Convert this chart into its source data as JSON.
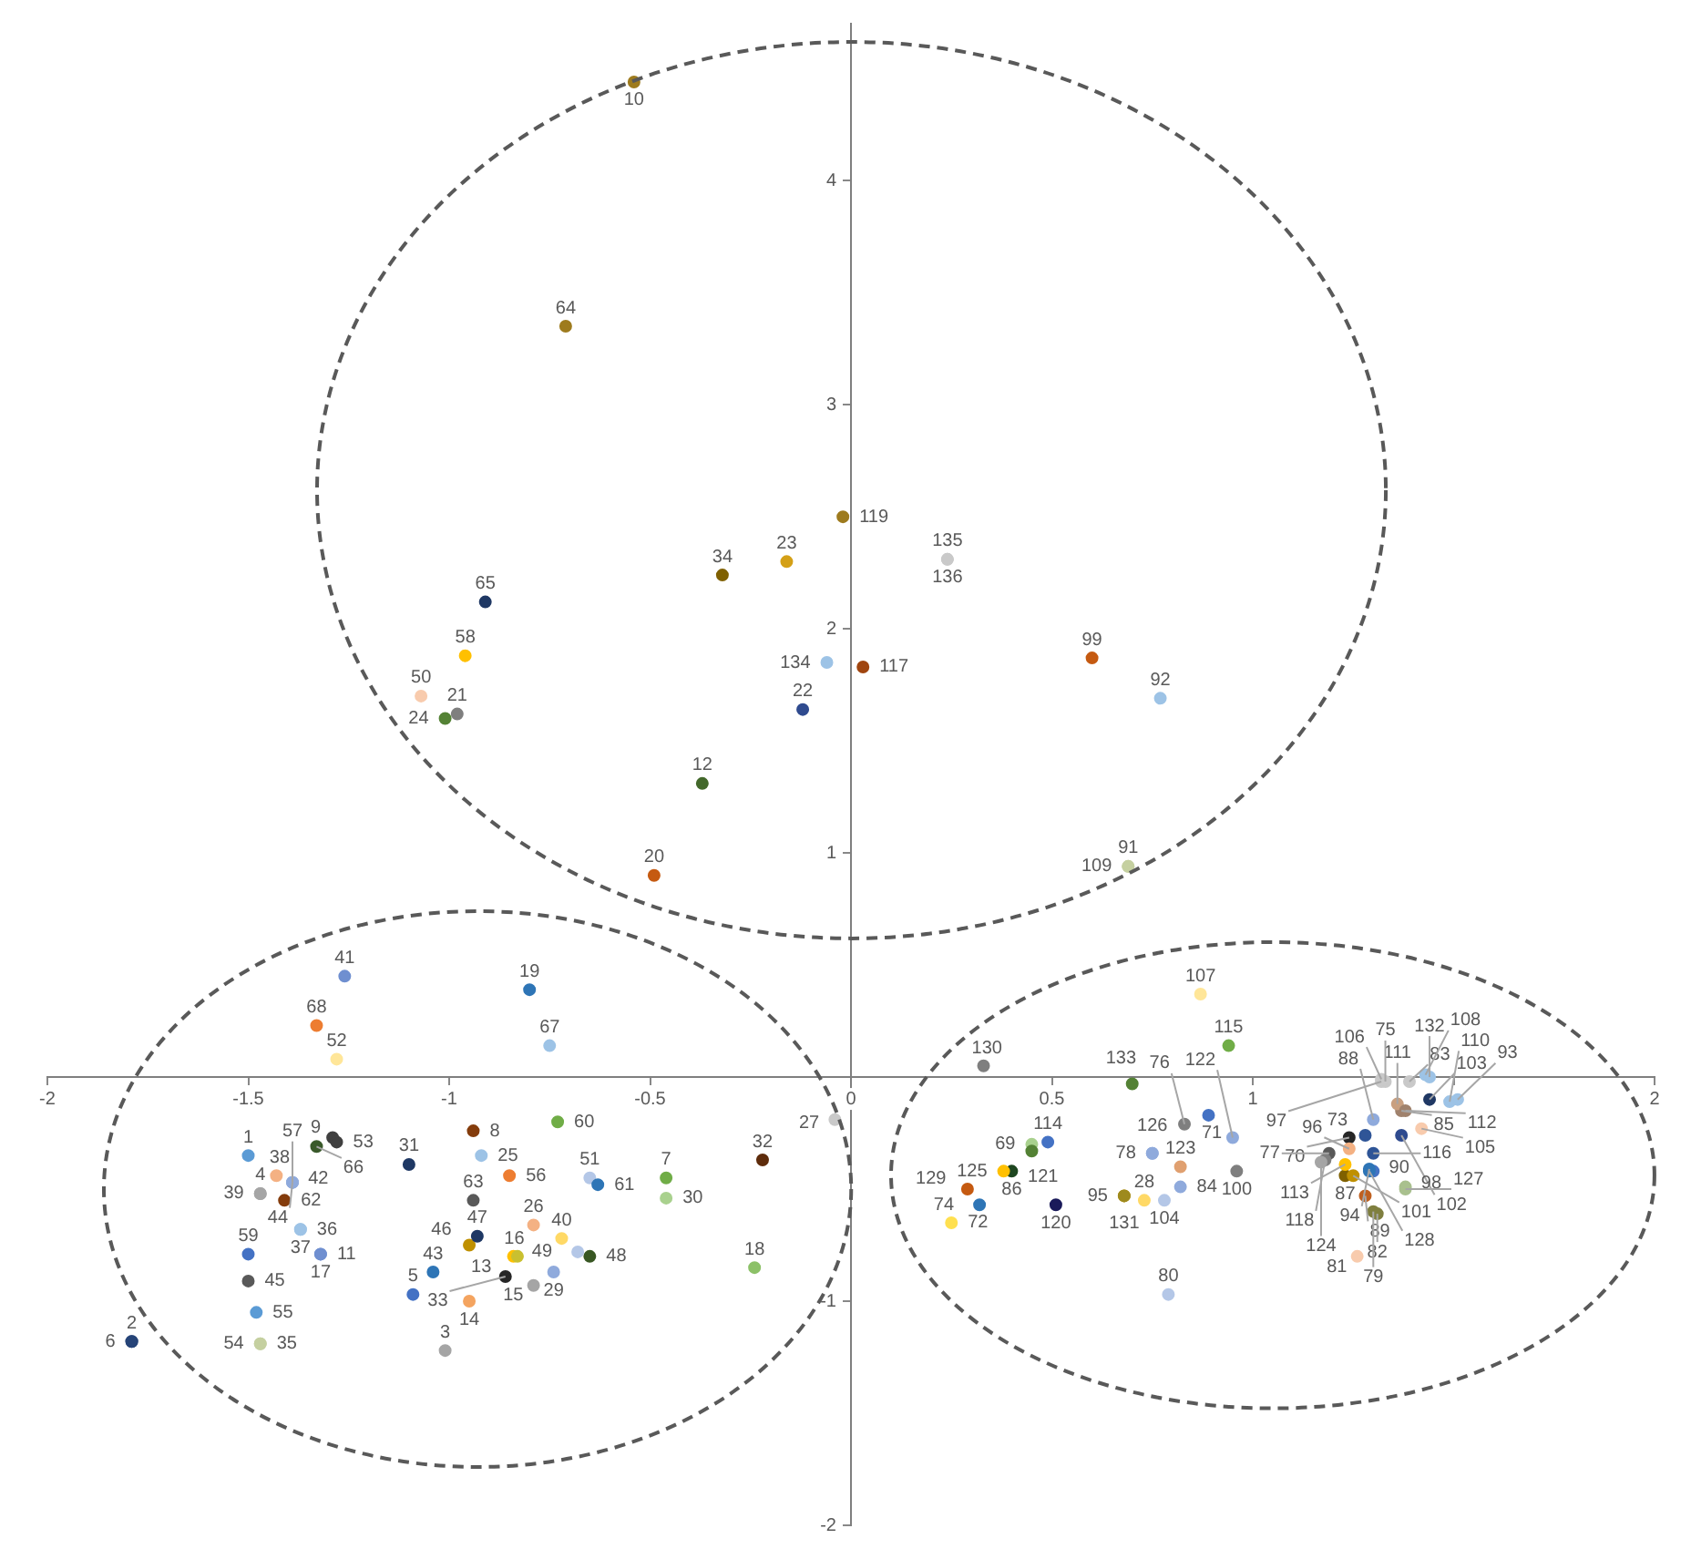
{
  "chart_data": {
    "type": "scatter",
    "x": [
      -1.5,
      -1.79,
      -1.01,
      -1.47,
      -1.09,
      -1.79,
      -0.46,
      -0.94,
      -1.29,
      -0.54,
      -1.32,
      -0.37,
      -0.84,
      -0.95,
      -0.79,
      -0.83,
      -1.32,
      -0.24,
      -0.8,
      -0.49,
      -0.98,
      -0.12,
      -0.16,
      -1.01,
      -0.92,
      -0.79,
      -0.04,
      0.73,
      -0.74,
      -0.46,
      -1.1,
      -0.22,
      -0.86,
      -0.32,
      -1.47,
      -1.37,
      -1.37,
      -1.43,
      -1.47,
      -0.72,
      -1.26,
      -1.39,
      -1.04,
      -1.39,
      -1.5,
      -0.95,
      -0.93,
      -0.65,
      -0.68,
      -1.07,
      -0.65,
      -1.28,
      -1.28,
      -1.47,
      -1.48,
      -0.85,
      -1.39,
      -0.96,
      -1.5,
      -0.73,
      -0.63,
      -1.41,
      -0.94,
      -0.71,
      -0.91,
      -1.33,
      -0.75,
      -1.33,
      0.45,
      1.24,
      0.89,
      0.25,
      1.28,
      0.32,
      1.33,
      0.83,
      1.19,
      0.75,
      1.3,
      0.79,
      1.26,
      1.31,
      1.39,
      0.82,
      1.37,
      0.4,
      1.23,
      1.3,
      1.28,
      1.3,
      0.69,
      0.77,
      1.51,
      1.29,
      0.68,
      1.24,
      1.32,
      1.38,
      0.6,
      0.96,
      1.25,
      1.37,
      1.44,
      0.78,
      1.42,
      1.32,
      0.87,
      1.43,
      0.69,
      1.49,
      1.36,
      1.38,
      1.23,
      0.49,
      0.94,
      1.3,
      0.03,
      1.18,
      -0.02,
      0.51,
      0.45,
      0.95,
      0.82,
      1.17,
      0.38,
      0.75,
      1.38,
      1.29,
      0.29,
      0.33,
      0.68,
      1.44,
      0.7,
      -0.06,
      0.24,
      0.24
    ],
    "values": [
      -0.35,
      -1.18,
      -1.22,
      -0.52,
      -0.97,
      -1.18,
      -0.45,
      -0.24,
      -0.27,
      4.44,
      -0.79,
      1.31,
      -0.8,
      -1.0,
      -0.93,
      -0.8,
      -0.79,
      -0.85,
      0.39,
      0.9,
      1.62,
      1.64,
      2.3,
      1.6,
      -0.35,
      -0.66,
      -0.19,
      -0.55,
      -0.87,
      -0.54,
      -0.39,
      -0.37,
      -0.89,
      2.24,
      -1.19,
      -0.68,
      -0.68,
      -0.44,
      -0.52,
      -0.72,
      0.45,
      -0.47,
      -0.87,
      -0.47,
      -0.91,
      -0.75,
      -0.71,
      -0.8,
      -0.78,
      1.7,
      -0.45,
      0.08,
      -0.29,
      -1.19,
      -1.05,
      -0.44,
      -0.47,
      1.88,
      -0.79,
      -0.2,
      -0.48,
      -0.55,
      -0.55,
      3.35,
      2.12,
      -0.31,
      0.14,
      0.23,
      -0.3,
      -0.27,
      -0.17,
      -0.65,
      -0.26,
      -0.57,
      -0.02,
      -0.21,
      -0.34,
      -0.34,
      -0.6,
      -0.97,
      -0.8,
      -0.61,
      -0.02,
      -0.49,
      -0.15,
      -0.42,
      -0.44,
      -0.19,
      -0.53,
      -0.42,
      0.94,
      1.69,
      -0.1,
      -0.41,
      -0.53,
      -0.32,
      -0.02,
      -0.49,
      1.87,
      -0.42,
      -0.44,
      -0.26,
      -0.1,
      -0.55,
      -0.23,
      -0.01,
      0.37,
      0.01,
      0.94,
      -0.11,
      -0.12,
      -0.15,
      -0.39,
      -0.29,
      0.14,
      -0.34,
      1.83,
      -0.37,
      2.5,
      -0.57,
      -0.33,
      -0.27,
      -0.4,
      -0.38,
      -0.42,
      -0.34,
      -0.5,
      -0.42,
      -0.5,
      0.05,
      -0.53,
      0.0,
      -0.03,
      1.85,
      2.31,
      2.31
    ],
    "colors": [
      "#5b9bd5",
      "#264478",
      "#a5a5a5",
      "#a5a5a5",
      "#4472c4",
      "#264478",
      "#70ad47",
      "#843c0c",
      "#404040",
      "#9e7b1e",
      "#6f8fd0",
      "#43682b",
      "#ffc000",
      "#f4a460",
      "#a5a5a5",
      "#c9c030",
      "#6f8fd0",
      "#8cc168",
      "#2e75b6",
      "#c55a11",
      "#7f7f7f",
      "#2f4b8f",
      "#d4a017",
      "#548235",
      "#9dc3e6",
      "#f4b183",
      "#c9c9c9",
      "#ffd966",
      "#8faadc",
      "#a9d18e",
      "#1f3864",
      "#5e2c0c",
      "#262626",
      "#7f6000",
      "#c5d0a0",
      "#9dc3e6",
      "#9dc3e6",
      "#f4b183",
      "#a5a5a5",
      "#ffd966",
      "#6f8fd0",
      "#8faadc",
      "#2e75b6",
      "#8faadc",
      "#595959",
      "#bf9000",
      "#1f3864",
      "#385723",
      "#b4c7e7",
      "#f8cbad",
      "#b4c7e7",
      "#ffe699",
      "#404040",
      "#c5d0a0",
      "#5b9bd5",
      "#ed7d31",
      "#8faadc",
      "#ffc000",
      "#4472c4",
      "#70ad47",
      "#2e75b6",
      "#843c0c",
      "#595959",
      "#9e7b1e",
      "#1f3864",
      "#3a5a2b",
      "#9dc3e6",
      "#ed7d31",
      "#a9d18e",
      "#262626",
      "#4472c4",
      "#ffe050",
      "#2f5597",
      "#2e75b6",
      "#c9c9c9",
      "#7f7f7f",
      "#595959",
      "#8faadc",
      "#7f7f3f",
      "#b4c7e7",
      "#f8cbad",
      "#7f7f3f",
      "#c9c9c9",
      "#8faadc",
      "#a0826d",
      "#1e4620",
      "#7f6000",
      "#8faadc",
      "#bf6020",
      "#4472c4",
      "#c5d0a0",
      "#9dc3e6",
      "#9dc3e6",
      "#2e75b6",
      "#bf9000",
      "#f4b183",
      "#c9c9c9",
      "#a9c08e",
      "#c55a11",
      "#7f7f7f",
      "#bf9000",
      "#2f4b8f",
      "#203864",
      "#b4c7e7",
      "#f8cbad",
      "#c9c9c9",
      "#ffe699",
      "#9dc3e6",
      "#c5d0a0",
      "#9dc3e6",
      "#c9a080",
      "#a0826d",
      "#ffc000",
      "#4472c4",
      "#70ad47",
      "#2f5597",
      "#a0450f",
      "#7f7f7f",
      "#9e7b1e",
      "#1a1a5a",
      "#548235",
      "#8faadc",
      "#e0a070",
      "#a5a5a5",
      "#ffc000",
      "#8faadc",
      "#a9c08e",
      "#2e75b6",
      "#c55a11",
      "#7f7f7f",
      "#9e8a1e",
      "#9dc3e6",
      "#548235",
      "#9dc3e6",
      "#c9c9c9",
      "#c9c9c9"
    ],
    "xlim": [
      -2,
      2
    ],
    "xticks": [
      -2,
      -1.5,
      -1,
      -0.5,
      0,
      0.5,
      1,
      {
        "value": 1.5,
        "label": null
      },
      2
    ],
    "ylim": [
      -2,
      4.7
    ],
    "yticks": [
      -2,
      -1,
      {
        "value": 0,
        "label": null
      },
      1,
      2,
      3,
      4
    ],
    "grid": false,
    "legend": false,
    "marker": "circle",
    "annotations": [
      {
        "text": "1",
        "x": -1.5,
        "y": -0.35
      },
      {
        "text": "2",
        "x": -1.79,
        "y": -1.18
      },
      {
        "text": "3",
        "x": -1.01,
        "y": -1.22
      },
      {
        "text": "4",
        "x": -1.47,
        "y": -0.52
      },
      {
        "text": "5",
        "x": -1.09,
        "y": -0.97
      },
      {
        "text": "6",
        "x": -1.79,
        "y": -1.18
      },
      {
        "text": "7",
        "x": -0.46,
        "y": -0.45
      },
      {
        "text": "8",
        "x": -0.94,
        "y": -0.24
      },
      {
        "text": "9",
        "x": -1.29,
        "y": -0.27
      },
      {
        "text": "10",
        "x": -0.54,
        "y": 4.44
      },
      {
        "text": "11",
        "x": -1.32,
        "y": -0.79
      },
      {
        "text": "12",
        "x": -0.37,
        "y": 1.31
      },
      {
        "text": "13",
        "x": -0.84,
        "y": -0.8
      },
      {
        "text": "14",
        "x": -0.95,
        "y": -1.0
      },
      {
        "text": "15",
        "x": -0.79,
        "y": -0.93
      },
      {
        "text": "16",
        "x": -0.83,
        "y": -0.8
      },
      {
        "text": "17",
        "x": -1.32,
        "y": -0.79
      },
      {
        "text": "18",
        "x": -0.24,
        "y": -0.85
      },
      {
        "text": "19",
        "x": -0.8,
        "y": 0.39
      },
      {
        "text": "20",
        "x": -0.49,
        "y": 0.9
      },
      {
        "text": "21",
        "x": -0.98,
        "y": 1.62
      },
      {
        "text": "22",
        "x": -0.12,
        "y": 1.64
      },
      {
        "text": "23",
        "x": -0.16,
        "y": 2.3
      },
      {
        "text": "24",
        "x": -1.01,
        "y": 1.6
      },
      {
        "text": "25",
        "x": -0.92,
        "y": -0.35
      },
      {
        "text": "26",
        "x": -0.79,
        "y": -0.66
      },
      {
        "text": "27",
        "x": -0.04,
        "y": -0.19
      },
      {
        "text": "28",
        "x": 0.73,
        "y": -0.55
      },
      {
        "text": "29",
        "x": -0.74,
        "y": -0.87
      },
      {
        "text": "30",
        "x": -0.46,
        "y": -0.54
      },
      {
        "text": "31",
        "x": -1.1,
        "y": -0.39
      },
      {
        "text": "32",
        "x": -0.22,
        "y": -0.37
      },
      {
        "text": "33",
        "x": -0.86,
        "y": -0.89
      },
      {
        "text": "34",
        "x": -0.32,
        "y": 2.24
      },
      {
        "text": "35",
        "x": -1.47,
        "y": -1.19
      },
      {
        "text": "36",
        "x": -1.37,
        "y": -0.68
      },
      {
        "text": "37",
        "x": -1.37,
        "y": -0.68
      },
      {
        "text": "38",
        "x": -1.43,
        "y": -0.44
      },
      {
        "text": "39",
        "x": -1.47,
        "y": -0.52
      },
      {
        "text": "40",
        "x": -0.72,
        "y": -0.72
      },
      {
        "text": "41",
        "x": -1.26,
        "y": 0.45
      },
      {
        "text": "42",
        "x": -1.39,
        "y": -0.47
      },
      {
        "text": "43",
        "x": -1.04,
        "y": -0.87
      },
      {
        "text": "44",
        "x": -1.39,
        "y": -0.47
      },
      {
        "text": "45",
        "x": -1.5,
        "y": -0.91
      },
      {
        "text": "46",
        "x": -0.95,
        "y": -0.75
      },
      {
        "text": "47",
        "x": -0.93,
        "y": -0.71
      },
      {
        "text": "48",
        "x": -0.65,
        "y": -0.8
      },
      {
        "text": "49",
        "x": -0.68,
        "y": -0.78
      },
      {
        "text": "50",
        "x": -1.07,
        "y": 1.7
      },
      {
        "text": "51",
        "x": -0.65,
        "y": -0.45
      },
      {
        "text": "52",
        "x": -1.28,
        "y": 0.08
      },
      {
        "text": "53",
        "x": -1.28,
        "y": -0.29
      },
      {
        "text": "54",
        "x": -1.47,
        "y": -1.19
      },
      {
        "text": "55",
        "x": -1.48,
        "y": -1.05
      },
      {
        "text": "56",
        "x": -0.85,
        "y": -0.44
      },
      {
        "text": "57",
        "x": -1.39,
        "y": -0.47
      },
      {
        "text": "58",
        "x": -0.96,
        "y": 1.88
      },
      {
        "text": "59",
        "x": -1.5,
        "y": -0.79
      },
      {
        "text": "60",
        "x": -0.73,
        "y": -0.2
      },
      {
        "text": "61",
        "x": -0.63,
        "y": -0.48
      },
      {
        "text": "62",
        "x": -1.41,
        "y": -0.55
      },
      {
        "text": "63",
        "x": -0.94,
        "y": -0.55
      },
      {
        "text": "64",
        "x": -0.71,
        "y": 3.35
      },
      {
        "text": "65",
        "x": -0.91,
        "y": 2.12
      },
      {
        "text": "66",
        "x": -1.33,
        "y": -0.31
      },
      {
        "text": "67",
        "x": -0.75,
        "y": 0.14
      },
      {
        "text": "68",
        "x": -1.33,
        "y": 0.23
      },
      {
        "text": "69",
        "x": 0.45,
        "y": -0.3
      },
      {
        "text": "70",
        "x": 1.24,
        "y": -0.27
      },
      {
        "text": "71",
        "x": 0.89,
        "y": -0.17
      },
      {
        "text": "72",
        "x": 0.25,
        "y": -0.65
      },
      {
        "text": "73",
        "x": 1.28,
        "y": -0.26
      },
      {
        "text": "74",
        "x": 0.32,
        "y": -0.57
      },
      {
        "text": "75",
        "x": 1.33,
        "y": -0.02
      },
      {
        "text": "76",
        "x": 0.83,
        "y": -0.21
      },
      {
        "text": "77",
        "x": 1.19,
        "y": -0.34
      },
      {
        "text": "78",
        "x": 0.75,
        "y": -0.34
      },
      {
        "text": "79",
        "x": 1.3,
        "y": -0.6
      },
      {
        "text": "80",
        "x": 0.79,
        "y": -0.97
      },
      {
        "text": "81",
        "x": 1.26,
        "y": -0.8
      },
      {
        "text": "82",
        "x": 1.31,
        "y": -0.61
      },
      {
        "text": "83",
        "x": 1.39,
        "y": -0.02
      },
      {
        "text": "84",
        "x": 0.82,
        "y": -0.49
      },
      {
        "text": "85",
        "x": 1.37,
        "y": -0.15
      },
      {
        "text": "86",
        "x": 0.4,
        "y": -0.42
      },
      {
        "text": "87",
        "x": 1.23,
        "y": -0.44
      },
      {
        "text": "88",
        "x": 1.3,
        "y": -0.19
      },
      {
        "text": "89",
        "x": 1.28,
        "y": -0.53
      },
      {
        "text": "90",
        "x": 1.3,
        "y": -0.42
      },
      {
        "text": "91",
        "x": 0.69,
        "y": 0.94
      },
      {
        "text": "92",
        "x": 0.77,
        "y": 1.69
      },
      {
        "text": "93",
        "x": 1.51,
        "y": -0.1
      },
      {
        "text": "94",
        "x": 1.29,
        "y": -0.41
      },
      {
        "text": "95",
        "x": 0.68,
        "y": -0.53
      },
      {
        "text": "96",
        "x": 1.24,
        "y": -0.32
      },
      {
        "text": "97",
        "x": 1.32,
        "y": -0.02
      },
      {
        "text": "98",
        "x": 1.38,
        "y": -0.49
      },
      {
        "text": "99",
        "x": 0.6,
        "y": 1.87
      },
      {
        "text": "100",
        "x": 0.96,
        "y": -0.42
      },
      {
        "text": "101",
        "x": 1.25,
        "y": -0.44
      },
      {
        "text": "102",
        "x": 1.37,
        "y": -0.26
      },
      {
        "text": "103",
        "x": 1.44,
        "y": -0.1
      },
      {
        "text": "104",
        "x": 0.78,
        "y": -0.55
      },
      {
        "text": "105",
        "x": 1.42,
        "y": -0.23
      },
      {
        "text": "106",
        "x": 1.32,
        "y": -0.01
      },
      {
        "text": "107",
        "x": 0.87,
        "y": 0.37
      },
      {
        "text": "108",
        "x": 1.43,
        "y": 0.01
      },
      {
        "text": "109",
        "x": 0.69,
        "y": 0.94
      },
      {
        "text": "110",
        "x": 1.49,
        "y": -0.11
      },
      {
        "text": "111",
        "x": 1.36,
        "y": -0.12
      },
      {
        "text": "112",
        "x": 1.38,
        "y": -0.15
      },
      {
        "text": "113",
        "x": 1.23,
        "y": -0.39
      },
      {
        "text": "114",
        "x": 0.49,
        "y": -0.29
      },
      {
        "text": "115",
        "x": 0.94,
        "y": 0.14
      },
      {
        "text": "116",
        "x": 1.3,
        "y": -0.34
      },
      {
        "text": "117",
        "x": 0.03,
        "y": 1.83
      },
      {
        "text": "118",
        "x": 1.18,
        "y": -0.37
      },
      {
        "text": "119",
        "x": -0.02,
        "y": 2.5
      },
      {
        "text": "120",
        "x": 0.51,
        "y": -0.57
      },
      {
        "text": "121",
        "x": 0.45,
        "y": -0.33
      },
      {
        "text": "122",
        "x": 0.95,
        "y": -0.27
      },
      {
        "text": "123",
        "x": 0.82,
        "y": -0.4
      },
      {
        "text": "124",
        "x": 1.17,
        "y": -0.38
      },
      {
        "text": "125",
        "x": 0.38,
        "y": -0.42
      },
      {
        "text": "126",
        "x": 0.75,
        "y": -0.34
      },
      {
        "text": "127",
        "x": 1.38,
        "y": -0.5
      },
      {
        "text": "128",
        "x": 1.29,
        "y": -0.42
      },
      {
        "text": "129",
        "x": 0.29,
        "y": -0.5
      },
      {
        "text": "130",
        "x": 0.33,
        "y": 0.05
      },
      {
        "text": "131",
        "x": 0.68,
        "y": -0.53
      },
      {
        "text": "132",
        "x": 1.44,
        "y": 0.0
      },
      {
        "text": "133",
        "x": 0.7,
        "y": -0.03
      },
      {
        "text": "134",
        "x": -0.06,
        "y": 1.85
      },
      {
        "text": "135",
        "x": 0.24,
        "y": 2.31
      },
      {
        "text": "136",
        "x": 0.24,
        "y": 2.31
      }
    ]
  }
}
